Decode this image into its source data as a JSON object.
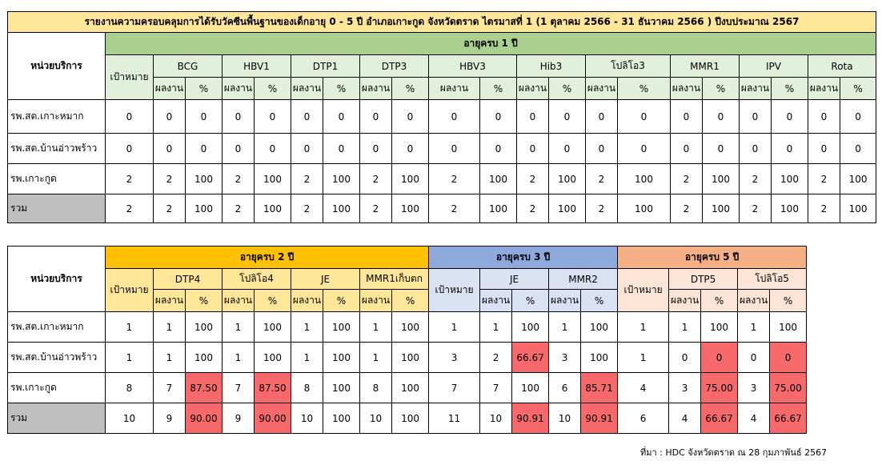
{
  "table1": {
    "title": "รายงานความครอบคลุมการได้รับวัคซีนพื้นฐานของเด็กอายุ 0 - 5 ปี อำเภอเกาะกูด จังหวัดตราด ไตรมาสที่ 1 (1 ตุลาคม 2566 - 31 ธันวาคม 2566 ) ปีงบประมาณ 2567",
    "unit_header": "หน่วยบริการ",
    "age_group": "อายุครบ 1 ปี",
    "target_header": "เป้าหมาย",
    "result_label": "ผลงาน",
    "percent_label": "%",
    "vaccines": [
      "BCG",
      "HBV1",
      "DTP1",
      "DTP3",
      "HBV3",
      "Hib3",
      "โปลิโอ3",
      "MMR1",
      "IPV",
      "Rota"
    ],
    "rows": [
      {
        "unit": "รพ.สต.เกาะหมาก",
        "target": "0",
        "values": [
          [
            "0",
            "0"
          ],
          [
            "0",
            "0"
          ],
          [
            "0",
            "0"
          ],
          [
            "0",
            "0"
          ],
          [
            "0",
            "0"
          ],
          [
            "0",
            "0"
          ],
          [
            "0",
            "0"
          ],
          [
            "0",
            "0"
          ],
          [
            "0",
            "0"
          ],
          [
            "0",
            "0"
          ]
        ]
      },
      {
        "unit": "รพ.สต.บ้านอ่าวพร้าว",
        "target": "0",
        "values": [
          [
            "0",
            "0"
          ],
          [
            "0",
            "0"
          ],
          [
            "0",
            "0"
          ],
          [
            "0",
            "0"
          ],
          [
            "0",
            "0"
          ],
          [
            "0",
            "0"
          ],
          [
            "0",
            "0"
          ],
          [
            "0",
            "0"
          ],
          [
            "0",
            "0"
          ],
          [
            "0",
            "0"
          ]
        ]
      },
      {
        "unit": "รพ.เกาะกูด",
        "target": "2",
        "values": [
          [
            "2",
            "100"
          ],
          [
            "2",
            "100"
          ],
          [
            "2",
            "100"
          ],
          [
            "2",
            "100"
          ],
          [
            "2",
            "100"
          ],
          [
            "2",
            "100"
          ],
          [
            "2",
            "100"
          ],
          [
            "2",
            "100"
          ],
          [
            "2",
            "100"
          ],
          [
            "2",
            "100"
          ]
        ]
      },
      {
        "unit": "รวม",
        "target": "2",
        "values": [
          [
            "2",
            "100"
          ],
          [
            "2",
            "100"
          ],
          [
            "2",
            "100"
          ],
          [
            "2",
            "100"
          ],
          [
            "2",
            "100"
          ],
          [
            "2",
            "100"
          ],
          [
            "2",
            "100"
          ],
          [
            "2",
            "100"
          ],
          [
            "2",
            "100"
          ],
          [
            "2",
            "100"
          ]
        ]
      }
    ]
  },
  "table2": {
    "unit_header": "หน่วยบริการ",
    "target_header": "เป้าหมาย",
    "result_label": "ผลงาน",
    "percent_label": "%",
    "groups": [
      {
        "label": "อายุครบ 2 ปี",
        "vaccines": [
          "DTP4",
          "โปลิโอ4",
          "JE",
          "MMR1เก็บตก"
        ]
      },
      {
        "label": "อายุครบ 3 ปี",
        "vaccines": [
          "JE",
          "MMR2"
        ]
      },
      {
        "label": "อายุครบ 5 ปี",
        "vaccines": [
          "DTP5",
          "โปลิโอ5"
        ]
      }
    ],
    "rows": [
      {
        "unit": "รพ.สต.เกาะหมาก",
        "g2": {
          "target": "1",
          "values": [
            [
              "1",
              "100"
            ],
            [
              "1",
              "100"
            ],
            [
              "1",
              "100"
            ],
            [
              "1",
              "100"
            ]
          ]
        },
        "g3": {
          "target": "1",
          "values": [
            [
              "1",
              "100"
            ],
            [
              "1",
              "100"
            ]
          ]
        },
        "g5": {
          "target": "1",
          "values": [
            [
              "1",
              "100"
            ],
            [
              "1",
              "100"
            ]
          ]
        }
      },
      {
        "unit": "รพ.สต.บ้านอ่าวพร้าว",
        "g2": {
          "target": "1",
          "values": [
            [
              "1",
              "100"
            ],
            [
              "1",
              "100"
            ],
            [
              "1",
              "100"
            ],
            [
              "1",
              "100"
            ]
          ]
        },
        "g3": {
          "target": "3",
          "values": [
            [
              "2",
              "66.67"
            ],
            [
              "3",
              "100"
            ]
          ]
        },
        "g5": {
          "target": "1",
          "values": [
            [
              "0",
              "0"
            ],
            [
              "0",
              "0"
            ]
          ]
        }
      },
      {
        "unit": "รพ.เกาะกูด",
        "g2": {
          "target": "8",
          "values": [
            [
              "7",
              "87.50"
            ],
            [
              "7",
              "87.50"
            ],
            [
              "8",
              "100"
            ],
            [
              "8",
              "100"
            ]
          ]
        },
        "g3": {
          "target": "7",
          "values": [
            [
              "7",
              "100"
            ],
            [
              "6",
              "85.71"
            ]
          ]
        },
        "g5": {
          "target": "4",
          "values": [
            [
              "3",
              "75.00"
            ],
            [
              "3",
              "75.00"
            ]
          ]
        }
      },
      {
        "unit": "รวม",
        "g2": {
          "target": "10",
          "values": [
            [
              "9",
              "90.00"
            ],
            [
              "9",
              "90.00"
            ],
            [
              "10",
              "100"
            ],
            [
              "10",
              "100"
            ]
          ]
        },
        "g3": {
          "target": "11",
          "values": [
            [
              "10",
              "90.91"
            ],
            [
              "10",
              "90.91"
            ]
          ]
        },
        "g5": {
          "target": "6",
          "values": [
            [
              "4",
              "66.67"
            ],
            [
              "4",
              "66.67"
            ]
          ]
        }
      }
    ]
  },
  "source": "ที่มา : HDC จังหวัดตราด ณ 28 กุมภาพันธ์ 2567",
  "colors": {
    "title_bg": "#ffe699",
    "age1_bg": "#a9d08e",
    "age1_sub_bg": "#e2efda",
    "age2_bg": "#ffc000",
    "age2_sub_bg": "#ffe699",
    "age3_bg": "#8ea9db",
    "age3_sub_bg": "#d9e1f2",
    "age5_bg": "#f4b084",
    "age5_sub_bg": "#fce4d6",
    "below_target_bg": "#f8696b",
    "total_label_bg": "#bfbfbf"
  }
}
